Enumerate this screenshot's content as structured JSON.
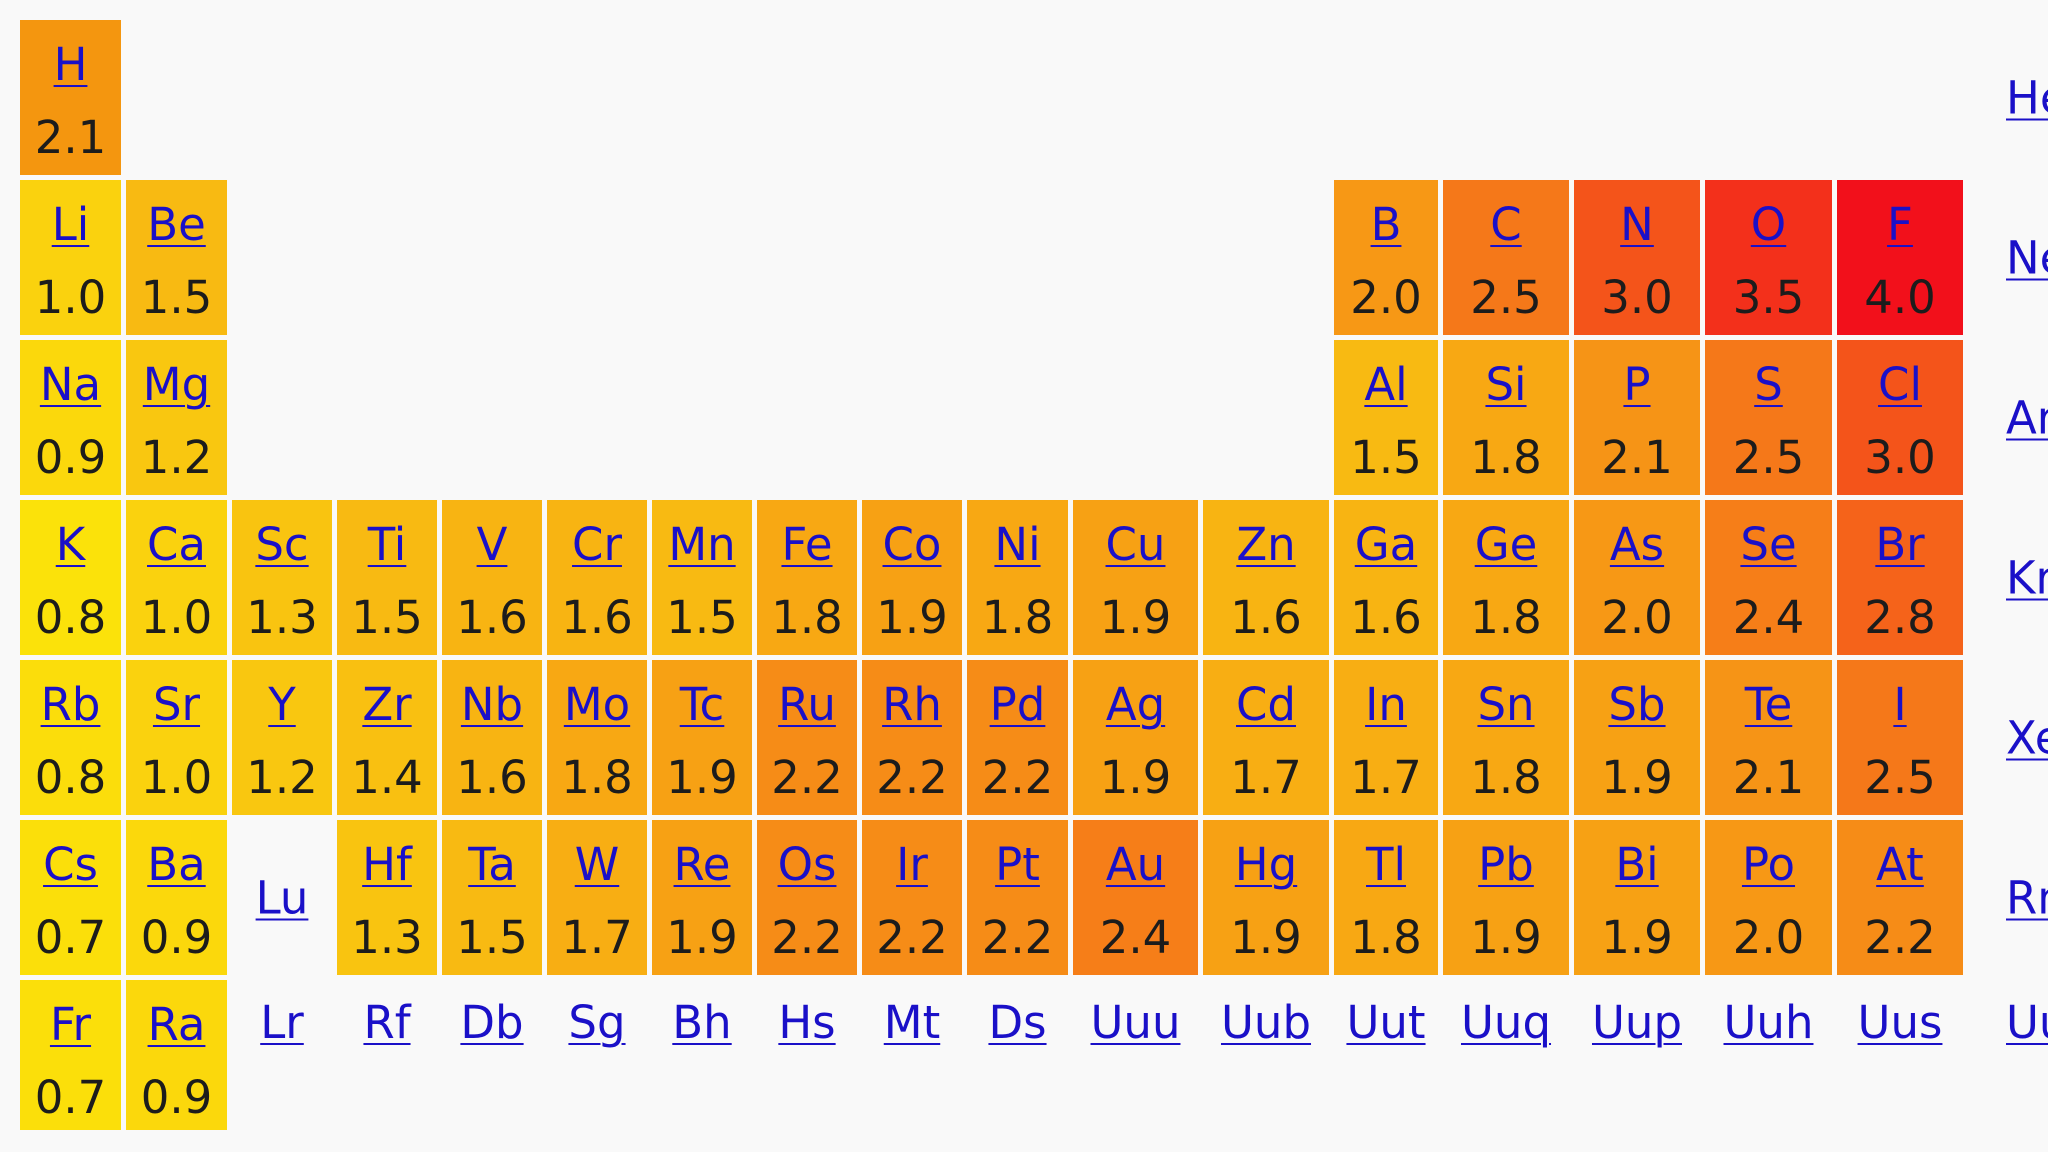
{
  "elements": [
    {
      "symbol": "H",
      "en": "2.1",
      "period": 1,
      "group": 1,
      "color": "#f4960f"
    },
    {
      "symbol": "He",
      "en": null,
      "period": 1,
      "group": 18,
      "color": null
    },
    {
      "symbol": "Li",
      "en": "1.0",
      "period": 2,
      "group": 1,
      "color": "#fad20e"
    },
    {
      "symbol": "Be",
      "en": "1.5",
      "period": 2,
      "group": 2,
      "color": "#f8ba12"
    },
    {
      "symbol": "B",
      "en": "2.0",
      "period": 2,
      "group": 13,
      "color": "#f79815"
    },
    {
      "symbol": "C",
      "en": "2.5",
      "period": 2,
      "group": 14,
      "color": "#f57819"
    },
    {
      "symbol": "N",
      "en": "3.0",
      "period": 2,
      "group": 15,
      "color": "#f4541a"
    },
    {
      "symbol": "O",
      "en": "3.5",
      "period": 2,
      "group": 16,
      "color": "#f3301b"
    },
    {
      "symbol": "F",
      "en": "4.0",
      "period": 2,
      "group": 17,
      "color": "#f2101b"
    },
    {
      "symbol": "Ne",
      "en": null,
      "period": 2,
      "group": 18,
      "color": null
    },
    {
      "symbol": "Na",
      "en": "0.9",
      "period": 3,
      "group": 1,
      "color": "#fbd80c"
    },
    {
      "symbol": "Mg",
      "en": "1.2",
      "period": 3,
      "group": 2,
      "color": "#f9c710"
    },
    {
      "symbol": "Al",
      "en": "1.5",
      "period": 3,
      "group": 13,
      "color": "#f8ba12"
    },
    {
      "symbol": "Si",
      "en": "1.8",
      "period": 3,
      "group": 14,
      "color": "#f8a813"
    },
    {
      "symbol": "P",
      "en": "2.1",
      "period": 3,
      "group": 15,
      "color": "#f69416"
    },
    {
      "symbol": "S",
      "en": "2.5",
      "period": 3,
      "group": 16,
      "color": "#f57819"
    },
    {
      "symbol": "Cl",
      "en": "3.0",
      "period": 3,
      "group": 17,
      "color": "#f4541a"
    },
    {
      "symbol": "Ar",
      "en": null,
      "period": 3,
      "group": 18,
      "color": null
    },
    {
      "symbol": "K",
      "en": "0.8",
      "period": 4,
      "group": 1,
      "color": "#fbe20a"
    },
    {
      "symbol": "Ca",
      "en": "1.0",
      "period": 4,
      "group": 2,
      "color": "#fad20e"
    },
    {
      "symbol": "Sc",
      "en": "1.3",
      "period": 4,
      "group": 3,
      "color": "#f9c410"
    },
    {
      "symbol": "Ti",
      "en": "1.5",
      "period": 4,
      "group": 4,
      "color": "#f8ba12"
    },
    {
      "symbol": "V",
      "en": "1.6",
      "period": 4,
      "group": 5,
      "color": "#f8b412"
    },
    {
      "symbol": "Cr",
      "en": "1.6",
      "period": 4,
      "group": 6,
      "color": "#f8b412"
    },
    {
      "symbol": "Mn",
      "en": "1.5",
      "period": 4,
      "group": 7,
      "color": "#f8ba12"
    },
    {
      "symbol": "Fe",
      "en": "1.8",
      "period": 4,
      "group": 8,
      "color": "#f8a813"
    },
    {
      "symbol": "Co",
      "en": "1.9",
      "period": 4,
      "group": 9,
      "color": "#f7a114"
    },
    {
      "symbol": "Ni",
      "en": "1.8",
      "period": 4,
      "group": 10,
      "color": "#f8a813"
    },
    {
      "symbol": "Cu",
      "en": "1.9",
      "period": 4,
      "group": 11,
      "color": "#f7a114"
    },
    {
      "symbol": "Zn",
      "en": "1.6",
      "period": 4,
      "group": 12,
      "color": "#f8b412"
    },
    {
      "symbol": "Ga",
      "en": "1.6",
      "period": 4,
      "group": 13,
      "color": "#f8b412"
    },
    {
      "symbol": "Ge",
      "en": "1.8",
      "period": 4,
      "group": 14,
      "color": "#f8a813"
    },
    {
      "symbol": "As",
      "en": "2.0",
      "period": 4,
      "group": 15,
      "color": "#f79815"
    },
    {
      "symbol": "Se",
      "en": "2.4",
      "period": 4,
      "group": 16,
      "color": "#f67e18"
    },
    {
      "symbol": "Br",
      "en": "2.8",
      "period": 4,
      "group": 17,
      "color": "#f5631a"
    },
    {
      "symbol": "Kr",
      "en": null,
      "period": 4,
      "group": 18,
      "color": null
    },
    {
      "symbol": "Rb",
      "en": "0.8",
      "period": 5,
      "group": 1,
      "color": "#fbdd0b"
    },
    {
      "symbol": "Sr",
      "en": "1.0",
      "period": 5,
      "group": 2,
      "color": "#fad20e"
    },
    {
      "symbol": "Y",
      "en": "1.2",
      "period": 5,
      "group": 3,
      "color": "#f9c710"
    },
    {
      "symbol": "Zr",
      "en": "1.4",
      "period": 5,
      "group": 4,
      "color": "#f9c011"
    },
    {
      "symbol": "Nb",
      "en": "1.6",
      "period": 5,
      "group": 5,
      "color": "#f8b412"
    },
    {
      "symbol": "Mo",
      "en": "1.8",
      "period": 5,
      "group": 6,
      "color": "#f8a813"
    },
    {
      "symbol": "Tc",
      "en": "1.9",
      "period": 5,
      "group": 7,
      "color": "#f7a114"
    },
    {
      "symbol": "Ru",
      "en": "2.2",
      "period": 5,
      "group": 8,
      "color": "#f68c17"
    },
    {
      "symbol": "Rh",
      "en": "2.2",
      "period": 5,
      "group": 9,
      "color": "#f68c17"
    },
    {
      "symbol": "Pd",
      "en": "2.2",
      "period": 5,
      "group": 10,
      "color": "#f68c17"
    },
    {
      "symbol": "Ag",
      "en": "1.9",
      "period": 5,
      "group": 11,
      "color": "#f7a114"
    },
    {
      "symbol": "Cd",
      "en": "1.7",
      "period": 5,
      "group": 12,
      "color": "#f8ae13"
    },
    {
      "symbol": "In",
      "en": "1.7",
      "period": 5,
      "group": 13,
      "color": "#f8ae13"
    },
    {
      "symbol": "Sn",
      "en": "1.8",
      "period": 5,
      "group": 14,
      "color": "#f8a813"
    },
    {
      "symbol": "Sb",
      "en": "1.9",
      "period": 5,
      "group": 15,
      "color": "#f7a114"
    },
    {
      "symbol": "Te",
      "en": "2.1",
      "period": 5,
      "group": 16,
      "color": "#f69416"
    },
    {
      "symbol": "I",
      "en": "2.5",
      "period": 5,
      "group": 17,
      "color": "#f57819"
    },
    {
      "symbol": "Xe",
      "en": null,
      "period": 5,
      "group": 18,
      "color": null
    },
    {
      "symbol": "Cs",
      "en": "0.7",
      "period": 6,
      "group": 1,
      "color": "#fbdf0a"
    },
    {
      "symbol": "Ba",
      "en": "0.9",
      "period": 6,
      "group": 2,
      "color": "#fbd80c"
    },
    {
      "symbol": "Lu",
      "en": null,
      "period": 6,
      "group": 3,
      "color": null
    },
    {
      "symbol": "Hf",
      "en": "1.3",
      "period": 6,
      "group": 4,
      "color": "#f9c410"
    },
    {
      "symbol": "Ta",
      "en": "1.5",
      "period": 6,
      "group": 5,
      "color": "#f8ba12"
    },
    {
      "symbol": "W",
      "en": "1.7",
      "period": 6,
      "group": 6,
      "color": "#f8ae13"
    },
    {
      "symbol": "Re",
      "en": "1.9",
      "period": 6,
      "group": 7,
      "color": "#f7a114"
    },
    {
      "symbol": "Os",
      "en": "2.2",
      "period": 6,
      "group": 8,
      "color": "#f68c17"
    },
    {
      "symbol": "Ir",
      "en": "2.2",
      "period": 6,
      "group": 9,
      "color": "#f68c17"
    },
    {
      "symbol": "Pt",
      "en": "2.2",
      "period": 6,
      "group": 10,
      "color": "#f68c17"
    },
    {
      "symbol": "Au",
      "en": "2.4",
      "period": 6,
      "group": 11,
      "color": "#f67e18"
    },
    {
      "symbol": "Hg",
      "en": "1.9",
      "period": 6,
      "group": 12,
      "color": "#f7a114"
    },
    {
      "symbol": "Tl",
      "en": "1.8",
      "period": 6,
      "group": 13,
      "color": "#f8a813"
    },
    {
      "symbol": "Pb",
      "en": "1.9",
      "period": 6,
      "group": 14,
      "color": "#f7a114"
    },
    {
      "symbol": "Bi",
      "en": "1.9",
      "period": 6,
      "group": 15,
      "color": "#f7a114"
    },
    {
      "symbol": "Po",
      "en": "2.0",
      "period": 6,
      "group": 16,
      "color": "#f79815"
    },
    {
      "symbol": "At",
      "en": "2.2",
      "period": 6,
      "group": 17,
      "color": "#f68c17"
    },
    {
      "symbol": "Rn",
      "en": null,
      "period": 6,
      "group": 18,
      "color": null
    },
    {
      "symbol": "Fr",
      "en": "0.7",
      "period": 7,
      "group": 1,
      "color": "#fbdf0a"
    },
    {
      "symbol": "Ra",
      "en": "0.9",
      "period": 7,
      "group": 2,
      "color": "#fbd80c"
    },
    {
      "symbol": "Lr",
      "en": null,
      "period": 7,
      "group": 3,
      "color": null
    },
    {
      "symbol": "Rf",
      "en": null,
      "period": 7,
      "group": 4,
      "color": null
    },
    {
      "symbol": "Db",
      "en": null,
      "period": 7,
      "group": 5,
      "color": null
    },
    {
      "symbol": "Sg",
      "en": null,
      "period": 7,
      "group": 6,
      "color": null
    },
    {
      "symbol": "Bh",
      "en": null,
      "period": 7,
      "group": 7,
      "color": null
    },
    {
      "symbol": "Hs",
      "en": null,
      "period": 7,
      "group": 8,
      "color": null
    },
    {
      "symbol": "Mt",
      "en": null,
      "period": 7,
      "group": 9,
      "color": null
    },
    {
      "symbol": "Ds",
      "en": null,
      "period": 7,
      "group": 10,
      "color": null
    },
    {
      "symbol": "Uuu",
      "en": null,
      "period": 7,
      "group": 11,
      "color": null
    },
    {
      "symbol": "Uub",
      "en": null,
      "period": 7,
      "group": 12,
      "color": null
    },
    {
      "symbol": "Uut",
      "en": null,
      "period": 7,
      "group": 13,
      "color": null
    },
    {
      "symbol": "Uuq",
      "en": null,
      "period": 7,
      "group": 14,
      "color": null
    },
    {
      "symbol": "Uup",
      "en": null,
      "period": 7,
      "group": 15,
      "color": null
    },
    {
      "symbol": "Uuh",
      "en": null,
      "period": 7,
      "group": 16,
      "color": null
    },
    {
      "symbol": "Uus",
      "en": null,
      "period": 7,
      "group": 17,
      "color": null
    },
    {
      "symbol": "Uuo",
      "en": null,
      "period": 7,
      "group": 18,
      "color": null
    }
  ]
}
